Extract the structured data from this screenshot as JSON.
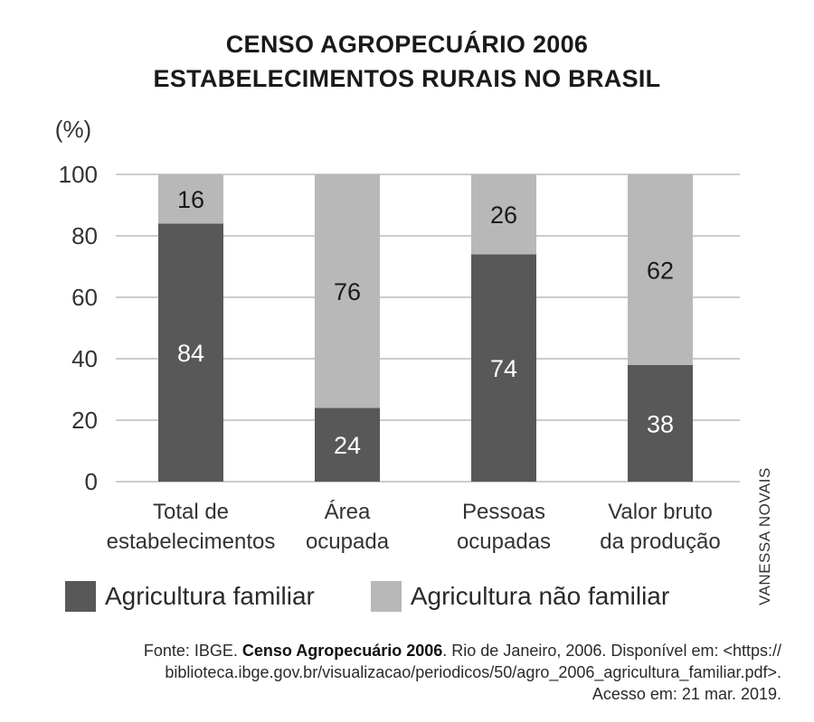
{
  "chart_data": {
    "type": "bar",
    "stacked": true,
    "percent": true,
    "title": "CENSO AGROPECUÁRIO 2006",
    "subtitle": "ESTABELECIMENTOS RURAIS NO BRASIL",
    "ylabel": "(%)",
    "xlabel": "",
    "ylim": [
      0,
      100
    ],
    "yticks": [
      0,
      20,
      40,
      60,
      80,
      100
    ],
    "grid": true,
    "legend": "bottom",
    "categories": [
      [
        "Total de",
        "estabelecimentos"
      ],
      [
        "Área",
        "ocupada"
      ],
      [
        "Pessoas",
        "ocupadas"
      ],
      [
        "Valor bruto",
        "da produção"
      ]
    ],
    "series": [
      {
        "name": "Agricultura familiar",
        "values": [
          84,
          24,
          74,
          38
        ],
        "color": "#585858"
      },
      {
        "name": "Agricultura não familiar",
        "values": [
          16,
          76,
          26,
          62
        ],
        "color": "#b8b8b8"
      }
    ]
  },
  "credit": "VANESSA NOVAIS",
  "source": {
    "prefix": "Fonte: IBGE. ",
    "title": "Censo Agropecuário 2006",
    "line1_rest": ". Rio de Janeiro, 2006. Disponível em: <https://",
    "line2": "biblioteca.ibge.gov.br/visualizacao/periodicos/50/agro_2006_agricultura_familiar.pdf>.",
    "line3": "Acesso em: 21 mar. 2019."
  }
}
